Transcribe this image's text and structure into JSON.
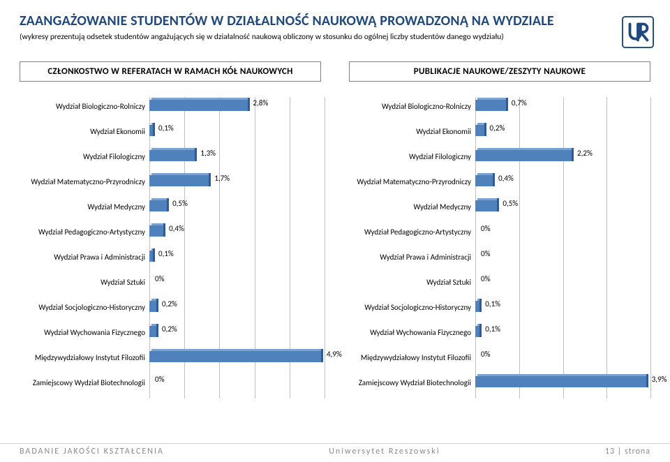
{
  "header": {
    "title": "ZAANGAŻOWANIE STUDENTÓW W DZIAŁALNOŚĆ NAUKOWĄ PROWADZONĄ NA WYDZIALE",
    "subtitle": "(wykresy prezentują odsetek studentów angażujących się w działalność naukową obliczony w stosunku do ogólnej liczby studentów danego wydziału)"
  },
  "sections": {
    "left": "CZŁONKOSTWO W REFERATACH W RAMACH KÓŁ NAUKOWYCH",
    "right": "PUBLIKACJE NAUKOWE/ZESZYTY NAUKOWE"
  },
  "labels": [
    "Wydział Biologiczno-Rolniczy",
    "Wydział Ekonomii",
    "Wydział Filologiczny",
    "Wydział Matematyczno-Przyrodniczy",
    "Wydział Medyczny",
    "Wydział Pedagogiczno-Artystyczny",
    "Wydział Prawa i Administracji",
    "Wydział Sztuki",
    "Wydział Socjologiczno-Historyczny",
    "Wydział Wychowania Fizycznego",
    "Międzywydziałowy Instytut Filozofii",
    "Zamiejscowy Wydział Biotechnologii"
  ],
  "chart_left": {
    "type": "bar",
    "xmax": 5.0,
    "gridlines": [
      0,
      1,
      2,
      3,
      4,
      5
    ],
    "bar_color": "#4f81bd",
    "bar_top_color": "#7aa2d2",
    "bar_side_color": "#2f5a94",
    "values": [
      2.8,
      0.1,
      1.3,
      1.7,
      0.5,
      0.4,
      0.1,
      0,
      0.2,
      0.2,
      4.9,
      0
    ],
    "value_labels": [
      "2,8%",
      "0,1%",
      "1,3%",
      "1,7%",
      "0,5%",
      "0,4%",
      "0,1%",
      "0%",
      "0,2%",
      "0,2%",
      "4,9%",
      "0%"
    ],
    "label_fontsize": 11,
    "value_fontsize": 11,
    "grid_color": "#bfbfbf",
    "background_color": "#ffffff"
  },
  "chart_right": {
    "type": "bar",
    "xmax": 4.0,
    "gridlines": [
      0,
      1,
      2,
      3,
      4
    ],
    "bar_color": "#4f81bd",
    "bar_top_color": "#7aa2d2",
    "bar_side_color": "#2f5a94",
    "values": [
      0.7,
      0.2,
      2.2,
      0.4,
      0.5,
      0,
      0,
      0,
      0.1,
      0.1,
      0,
      3.9
    ],
    "value_labels": [
      "0,7%",
      "0,2%",
      "2,2%",
      "0,4%",
      "0,5%",
      "0%",
      "0%",
      "0%",
      "0,1%",
      "0,1%",
      "0%",
      "3,9%"
    ],
    "label_fontsize": 11,
    "value_fontsize": 11,
    "grid_color": "#bfbfbf",
    "background_color": "#ffffff"
  },
  "footer": {
    "left": "BADANIE JAKOŚCI KSZTAŁCENIA",
    "center": "Uniwersytet Rzeszowski",
    "right": "13 | strona"
  },
  "colors": {
    "title": "#1f497d",
    "text": "#000000",
    "footer_text": "#8a8a8a",
    "border": "#7f7f7f"
  },
  "typography": {
    "title_fontsize": 20,
    "title_weight": 700,
    "subtitle_fontsize": 11.5,
    "section_head_fontsize": 13
  },
  "logo_color": "#1f497d"
}
